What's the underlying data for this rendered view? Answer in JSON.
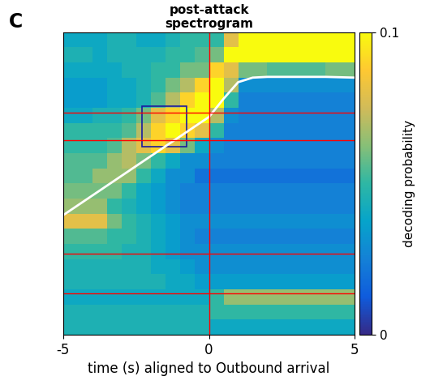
{
  "chart_data": {
    "type": "heatmap",
    "panel_label": "C",
    "title": "post-attack\nspectrogram",
    "xlabel": "time (s) aligned to Outbound arrival",
    "colorbar_label": "decoding probability",
    "xlim": [
      -5,
      5
    ],
    "ylim": [
      0,
      20
    ],
    "xticks": [
      -5,
      0,
      5
    ],
    "tick_labels": "x",
    "clim": [
      0,
      0.1
    ],
    "cticks": [
      0,
      0.1
    ],
    "x_edges": [
      -5,
      -4.5,
      -4,
      -3.5,
      -3,
      -2.5,
      -2,
      -1.5,
      -1,
      -0.5,
      0,
      0.5,
      1,
      1.5,
      2,
      2.5,
      3,
      3.5,
      4,
      4.5,
      5
    ],
    "y_edges": [
      20,
      19,
      18,
      17,
      16,
      15,
      14,
      13,
      12,
      11,
      10,
      9,
      8,
      7,
      6,
      5,
      4,
      3,
      2,
      1,
      0
    ],
    "cells": [
      [
        0.04,
        0.04,
        0.04,
        0.045,
        0.045,
        0.04,
        0.04,
        0.045,
        0.05,
        0.05,
        0.05,
        0.08,
        0.11,
        0.11,
        0.11,
        0.11,
        0.11,
        0.11,
        0.11,
        0.11
      ],
      [
        0.045,
        0.045,
        0.04,
        0.045,
        0.045,
        0.045,
        0.045,
        0.05,
        0.05,
        0.055,
        0.06,
        0.1,
        0.11,
        0.11,
        0.11,
        0.11,
        0.11,
        0.11,
        0.11,
        0.11
      ],
      [
        0.04,
        0.04,
        0.04,
        0.04,
        0.045,
        0.045,
        0.05,
        0.05,
        0.06,
        0.06,
        0.09,
        0.08,
        0.06,
        0.06,
        0.055,
        0.055,
        0.055,
        0.055,
        0.06,
        0.06
      ],
      [
        0.035,
        0.035,
        0.035,
        0.04,
        0.04,
        0.045,
        0.05,
        0.06,
        0.07,
        0.09,
        0.11,
        0.07,
        0.03,
        0.03,
        0.03,
        0.03,
        0.03,
        0.03,
        0.03,
        0.03
      ],
      [
        0.035,
        0.035,
        0.035,
        0.04,
        0.04,
        0.045,
        0.055,
        0.07,
        0.09,
        0.1,
        0.1,
        0.05,
        0.025,
        0.025,
        0.025,
        0.025,
        0.025,
        0.025,
        0.025,
        0.025
      ],
      [
        0.04,
        0.04,
        0.045,
        0.045,
        0.05,
        0.06,
        0.08,
        0.09,
        0.1,
        0.11,
        0.07,
        0.03,
        0.025,
        0.025,
        0.025,
        0.025,
        0.025,
        0.025,
        0.025,
        0.025
      ],
      [
        0.05,
        0.05,
        0.05,
        0.05,
        0.055,
        0.07,
        0.09,
        0.1,
        0.09,
        0.08,
        0.05,
        0.025,
        0.025,
        0.025,
        0.025,
        0.025,
        0.025,
        0.025,
        0.025,
        0.025
      ],
      [
        0.05,
        0.05,
        0.05,
        0.055,
        0.07,
        0.08,
        0.09,
        0.08,
        0.06,
        0.04,
        0.03,
        0.025,
        0.025,
        0.025,
        0.025,
        0.025,
        0.025,
        0.025,
        0.025,
        0.025
      ],
      [
        0.055,
        0.055,
        0.055,
        0.065,
        0.07,
        0.06,
        0.05,
        0.04,
        0.03,
        0.03,
        0.025,
        0.025,
        0.025,
        0.025,
        0.025,
        0.025,
        0.025,
        0.025,
        0.025,
        0.025
      ],
      [
        0.055,
        0.055,
        0.065,
        0.065,
        0.065,
        0.05,
        0.04,
        0.03,
        0.03,
        0.02,
        0.02,
        0.02,
        0.02,
        0.02,
        0.02,
        0.02,
        0.02,
        0.02,
        0.02,
        0.02
      ],
      [
        0.06,
        0.06,
        0.06,
        0.06,
        0.05,
        0.04,
        0.035,
        0.03,
        0.025,
        0.025,
        0.025,
        0.025,
        0.025,
        0.025,
        0.025,
        0.025,
        0.025,
        0.025,
        0.025,
        0.025
      ],
      [
        0.065,
        0.065,
        0.065,
        0.05,
        0.045,
        0.04,
        0.035,
        0.03,
        0.025,
        0.025,
        0.025,
        0.025,
        0.025,
        0.025,
        0.025,
        0.025,
        0.025,
        0.025,
        0.025,
        0.025
      ],
      [
        0.08,
        0.08,
        0.08,
        0.06,
        0.05,
        0.045,
        0.04,
        0.035,
        0.03,
        0.03,
        0.03,
        0.03,
        0.03,
        0.03,
        0.03,
        0.03,
        0.03,
        0.03,
        0.03,
        0.03
      ],
      [
        0.055,
        0.055,
        0.055,
        0.05,
        0.05,
        0.045,
        0.04,
        0.035,
        0.03,
        0.025,
        0.025,
        0.025,
        0.025,
        0.025,
        0.025,
        0.025,
        0.025,
        0.025,
        0.025,
        0.025
      ],
      [
        0.05,
        0.05,
        0.05,
        0.05,
        0.045,
        0.045,
        0.04,
        0.035,
        0.03,
        0.03,
        0.03,
        0.03,
        0.03,
        0.03,
        0.03,
        0.03,
        0.03,
        0.03,
        0.03,
        0.03
      ],
      [
        0.045,
        0.045,
        0.045,
        0.045,
        0.045,
        0.045,
        0.04,
        0.04,
        0.035,
        0.03,
        0.03,
        0.03,
        0.03,
        0.03,
        0.03,
        0.03,
        0.03,
        0.03,
        0.03,
        0.03
      ],
      [
        0.045,
        0.045,
        0.045,
        0.045,
        0.045,
        0.045,
        0.045,
        0.04,
        0.04,
        0.035,
        0.035,
        0.035,
        0.035,
        0.035,
        0.035,
        0.035,
        0.035,
        0.035,
        0.035,
        0.035
      ],
      [
        0.04,
        0.04,
        0.04,
        0.04,
        0.04,
        0.04,
        0.04,
        0.04,
        0.04,
        0.04,
        0.05,
        0.065,
        0.065,
        0.065,
        0.065,
        0.065,
        0.065,
        0.065,
        0.065,
        0.065
      ],
      [
        0.045,
        0.045,
        0.045,
        0.045,
        0.045,
        0.045,
        0.045,
        0.045,
        0.045,
        0.045,
        0.05,
        0.05,
        0.05,
        0.05,
        0.05,
        0.05,
        0.05,
        0.05,
        0.05,
        0.05
      ],
      [
        0.045,
        0.045,
        0.045,
        0.045,
        0.045,
        0.045,
        0.045,
        0.045,
        0.045,
        0.045,
        0.04,
        0.04,
        0.04,
        0.04,
        0.04,
        0.04,
        0.04,
        0.04,
        0.04,
        0.04
      ]
    ],
    "line": {
      "x": [
        -5,
        -4,
        -3,
        -2,
        -1,
        0,
        0.5,
        1,
        1.5,
        2,
        3,
        4,
        5
      ],
      "y": [
        7.9,
        9.2,
        10.5,
        11.8,
        13.1,
        14.4,
        15.6,
        16.7,
        17.0,
        17.05,
        17.05,
        17.05,
        17.0
      ],
      "color": "white"
    },
    "hlines": [
      14.69,
      12.87,
      5.36,
      2.73
    ],
    "vlines": [
      0
    ],
    "box": {
      "x": [
        -2.3,
        -0.77
      ],
      "y": [
        12.44,
        15.12
      ]
    }
  }
}
